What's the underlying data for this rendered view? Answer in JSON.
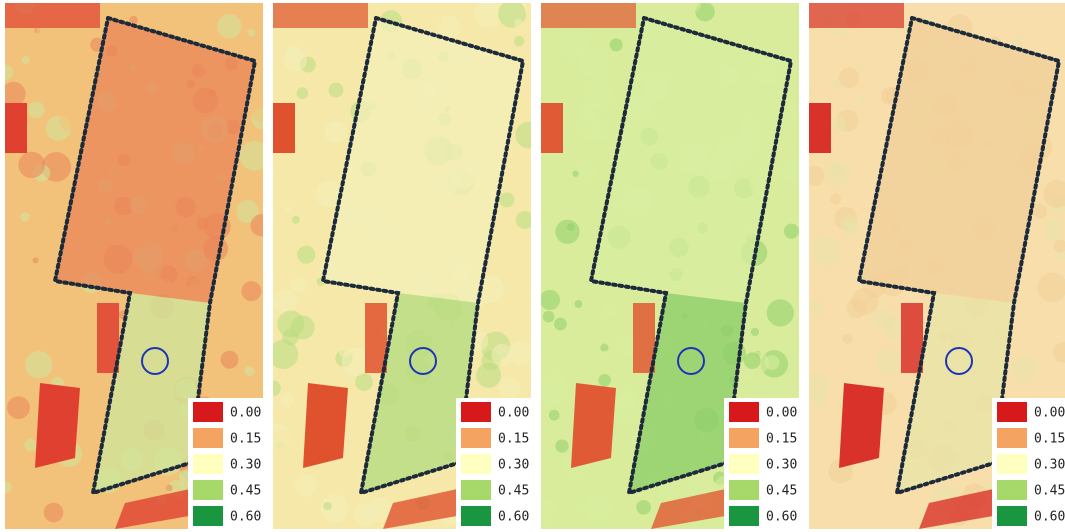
{
  "panels": [
    {
      "legend": [
        {
          "label": "0.00",
          "color": "#d7191c"
        },
        {
          "label": "0.15",
          "color": "#f4a460"
        },
        {
          "label": "0.30",
          "color": "#ffffc0"
        },
        {
          "label": "0.45",
          "color": "#a6d96a"
        },
        {
          "label": "0.60",
          "color": "#1a9641"
        }
      ]
    },
    {
      "legend": [
        {
          "label": "0.00",
          "color": "#d7191c"
        },
        {
          "label": "0.15",
          "color": "#f4a460"
        },
        {
          "label": "0.30",
          "color": "#ffffc0"
        },
        {
          "label": "0.45",
          "color": "#a6d96a"
        },
        {
          "label": "0.60",
          "color": "#1a9641"
        }
      ]
    },
    {
      "legend": [
        {
          "label": "0.00",
          "color": "#d7191c"
        },
        {
          "label": "0.15",
          "color": "#f4a460"
        },
        {
          "label": "0.30",
          "color": "#ffffc0"
        },
        {
          "label": "0.45",
          "color": "#a6d96a"
        },
        {
          "label": "0.60",
          "color": "#1a9641"
        }
      ]
    },
    {
      "legend": [
        {
          "label": "0.00",
          "color": "#d7191c"
        },
        {
          "label": "0.15",
          "color": "#f4a460"
        },
        {
          "label": "0.30",
          "color": "#ffffc0"
        },
        {
          "label": "0.45",
          "color": "#a6d96a"
        },
        {
          "label": "0.60",
          "color": "#1a9641"
        }
      ]
    }
  ]
}
